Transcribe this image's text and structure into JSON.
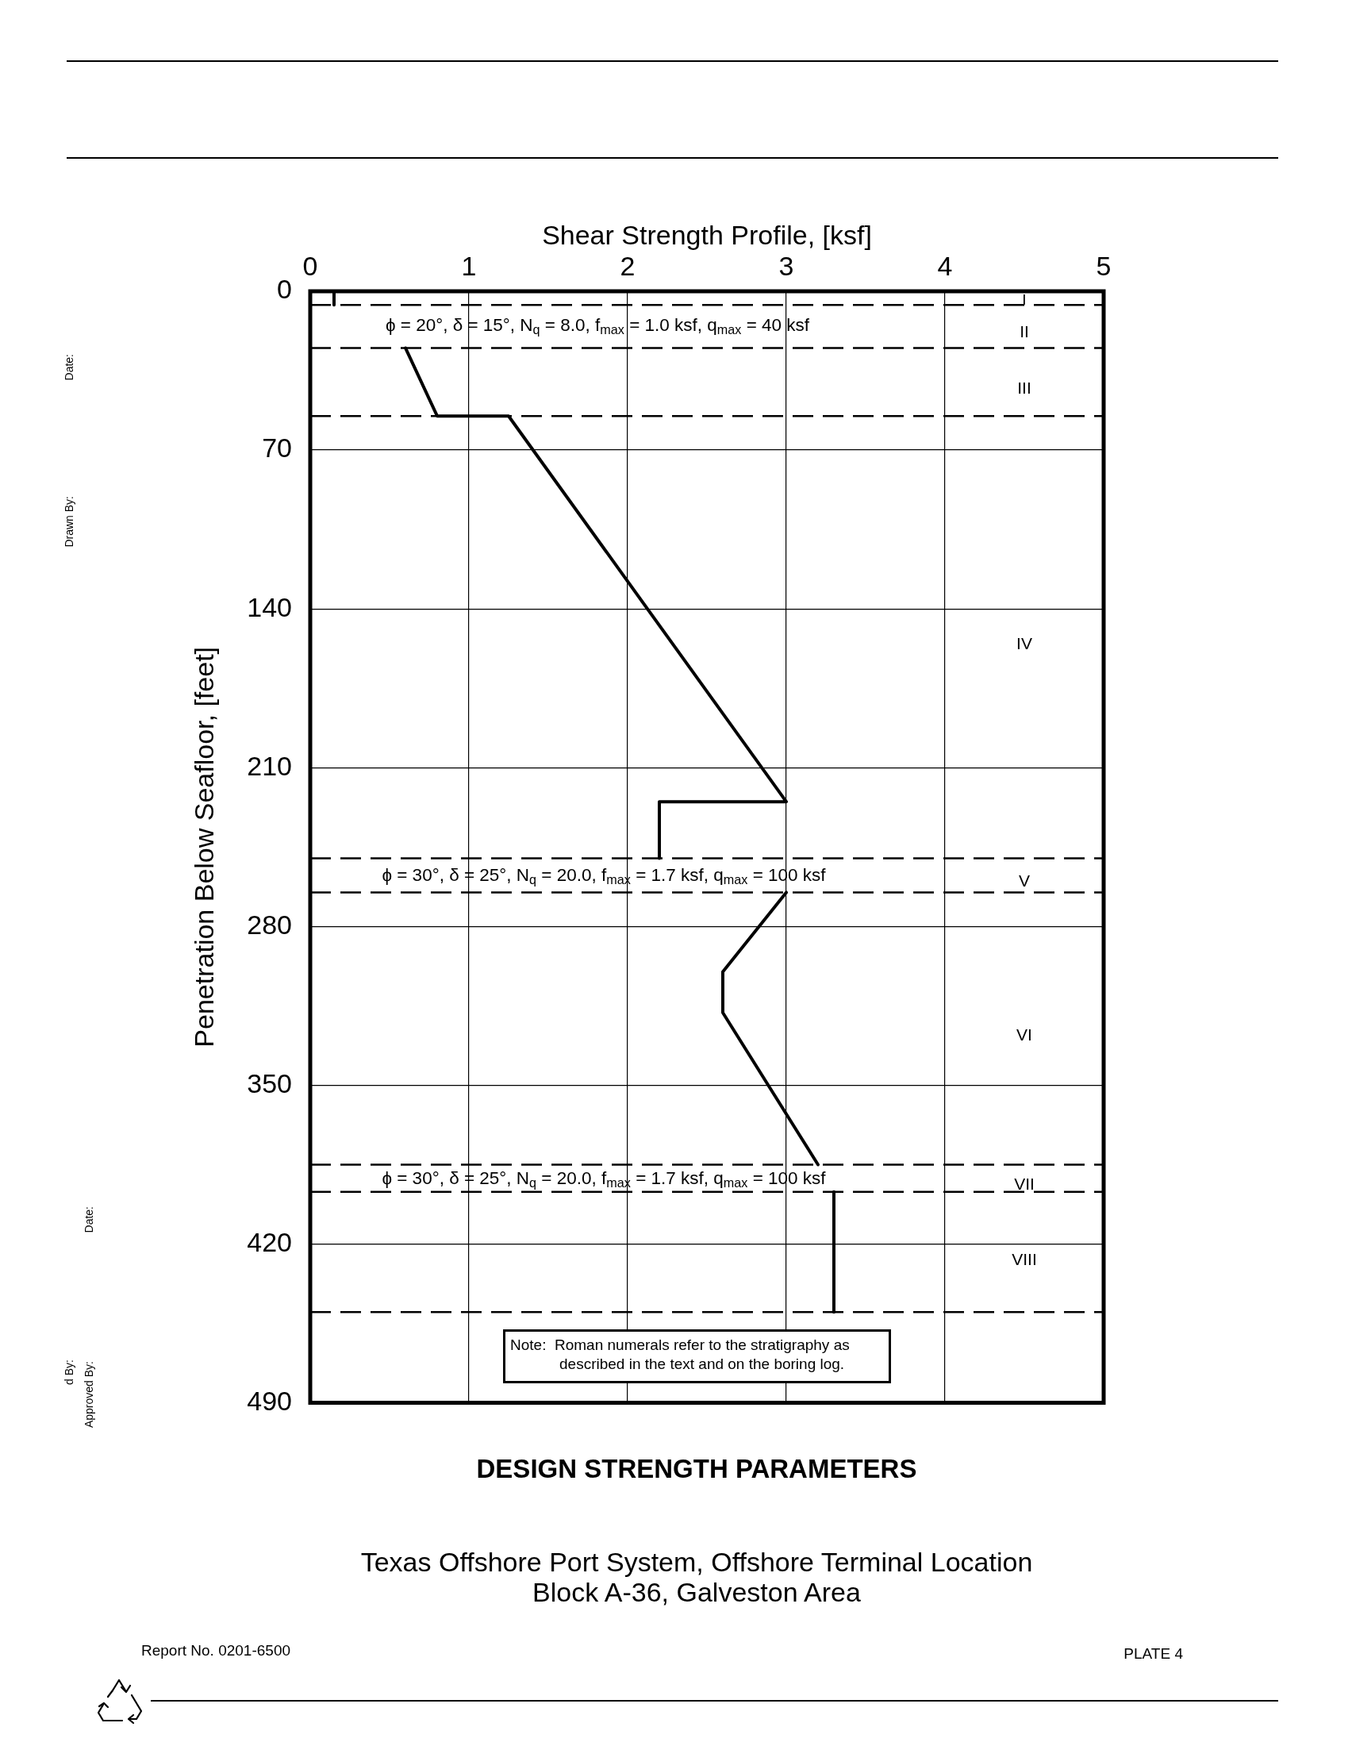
{
  "chart_data": {
    "type": "line",
    "title": "DESIGN STRENGTH PARAMETERS",
    "subtitle": "Texas Offshore Port System, Offshore Terminal Location\nBlock A-36, Galveston Area",
    "xlabel": "Shear Strength Profile, [ksf]",
    "ylabel": "Penetration Below Seafloor, [feet]",
    "series": [
      {
        "color": "#000000",
        "x": [
          0.15,
          0.15,
          null,
          0.6,
          0.8,
          1.25,
          3.0,
          2.2,
          2.2,
          null,
          3.0,
          2.6,
          2.6,
          3.2,
          null,
          3.3,
          3.3
        ],
        "values": [
          0,
          6,
          null,
          25,
          55,
          55,
          225,
          225,
          250,
          null,
          265,
          300,
          318,
          385,
          null,
          397,
          450
        ]
      }
    ],
    "xlim": [
      0,
      5
    ],
    "xticks": [
      0,
      1,
      2,
      3,
      4,
      5
    ],
    "ylim": [
      490,
      0
    ],
    "yticks": [
      0,
      70,
      140,
      210,
      280,
      350,
      420,
      490
    ],
    "grid": true,
    "marker": "none",
    "ref_lines": [
      {
        "axis": "y",
        "value": 6,
        "line_style": "dashed"
      },
      {
        "axis": "y",
        "value": 25,
        "line_style": "dashed"
      },
      {
        "axis": "y",
        "value": 55,
        "line_style": "dashed"
      },
      {
        "axis": "y",
        "value": 250,
        "line_style": "dashed"
      },
      {
        "axis": "y",
        "value": 265,
        "line_style": "dashed"
      },
      {
        "axis": "y",
        "value": 385,
        "line_style": "dashed"
      },
      {
        "axis": "y",
        "value": 397,
        "line_style": "dashed"
      },
      {
        "axis": "y",
        "value": 450,
        "line_style": "dashed"
      }
    ],
    "annotations": [
      "I",
      "II",
      "III",
      "IV",
      "V",
      "VI",
      "VII",
      "VIII",
      "ϕ = 20°, δ = 15°, N$_{q}$ = 8.0, f$_{max}$ = 1.0 ksf, q$_{max}$ = 40 ksf",
      "ϕ = 30°, δ = 25°, N$_{q}$ = 20.0, f$_{max}$ = 1.7 ksf, q$_{max}$ = 100 ksf",
      "ϕ = 30°, δ = 25°, N$_{q}$ = 20.0, f$_{max}$ = 1.7 ksf, q$_{max}$ = 100 ksf",
      "Note:  Roman numerals refer to the stratigraphy as described in the text and on the boring log.",
      "Report No. 0201-6500",
      "PLATE 4",
      "Date:",
      "Drawn By:",
      "d By:",
      "Date:",
      "Approved By:"
    ]
  }
}
